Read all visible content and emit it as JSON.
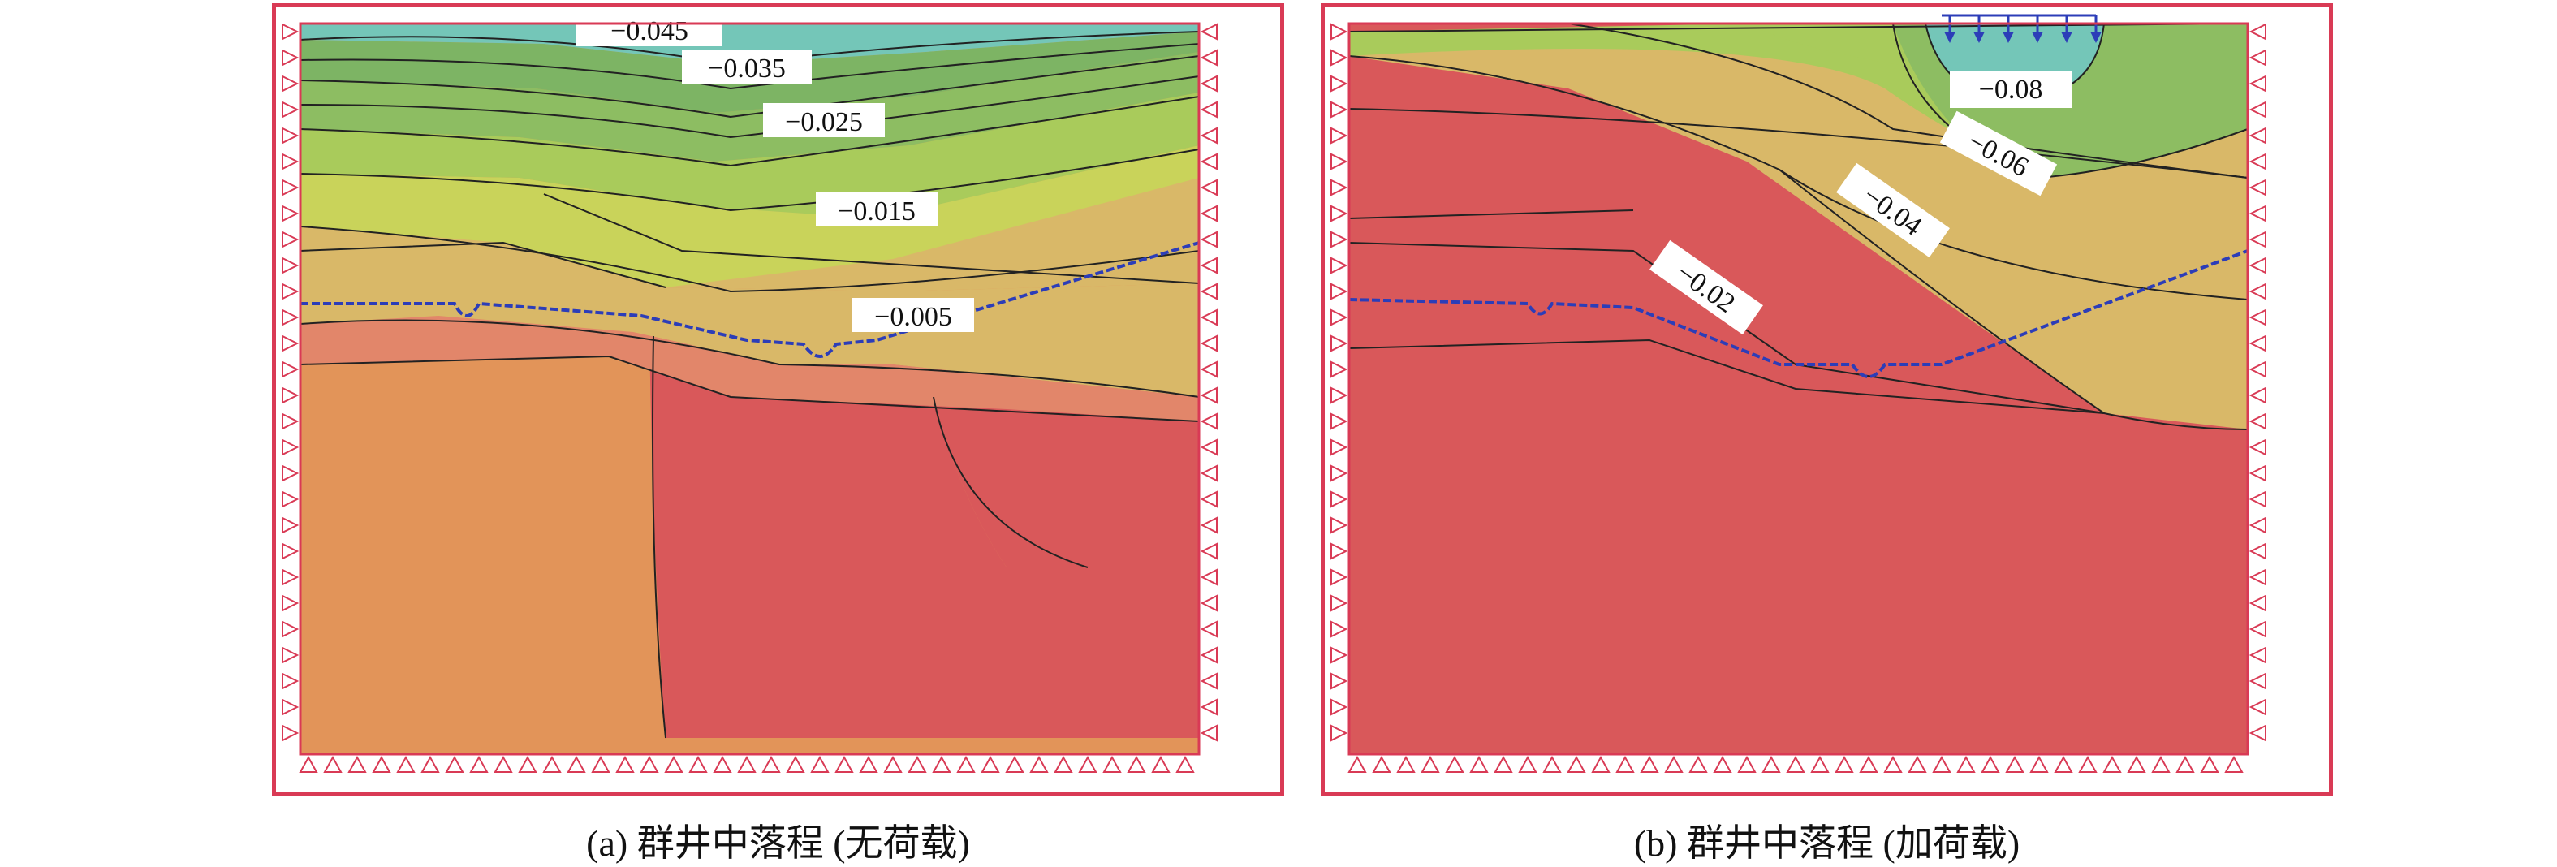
{
  "panels": [
    {
      "id": "a",
      "caption": "(a) 群井中落程 (无荷载)",
      "contour_labels": [
        "−0.045",
        "−0.035",
        "−0.025",
        "−0.015",
        "−0.005"
      ],
      "has_surface_load": false
    },
    {
      "id": "b",
      "caption": "(b) 群井中落程 (加荷载)",
      "contour_labels": [
        "−0.08",
        "−0.06",
        "−0.04",
        "−0.02"
      ],
      "has_surface_load": true
    }
  ],
  "colors": {
    "frame": "#d93a55",
    "fixed_support": "#d93a55",
    "water_table": "#2c3db8",
    "load_arrow": "#2c3db8",
    "teal": "#74c6b8",
    "green_dark": "#7db464",
    "green": "#8dbd62",
    "green_light": "#a9cb5b",
    "yellow_green": "#c9d35a",
    "tan": "#d9b868",
    "orange": "#e29459",
    "salmon": "#e2866a",
    "red": "#d9585a"
  },
  "icons": {
    "side_support": "roller-support-icon",
    "base_support": "pin-support-icon",
    "load": "down-arrow-icon"
  }
}
